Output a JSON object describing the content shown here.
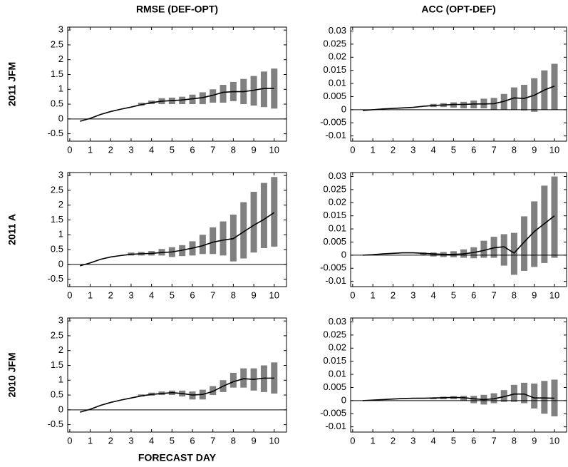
{
  "chart_data": [
    {
      "type": "line",
      "title": "RMSE (DEF-OPT)",
      "ylabel": "2011 JFM",
      "x": [
        0.5,
        1,
        1.5,
        2,
        2.5,
        3,
        3.5,
        4,
        4.5,
        5,
        5.5,
        6,
        6.5,
        7,
        7.5,
        8,
        8.5,
        9,
        9.5,
        10
      ],
      "values": [
        -0.08,
        0.02,
        0.15,
        0.25,
        0.33,
        0.4,
        0.48,
        0.55,
        0.6,
        0.62,
        0.64,
        0.68,
        0.72,
        0.8,
        0.9,
        0.92,
        0.92,
        0.97,
        1.03,
        1.03
      ],
      "bar_low": [
        null,
        null,
        null,
        null,
        null,
        null,
        0.45,
        0.5,
        0.5,
        0.5,
        0.5,
        0.5,
        0.5,
        0.55,
        0.55,
        0.6,
        0.5,
        0.45,
        0.4,
        0.35
      ],
      "bar_high": [
        null,
        null,
        null,
        null,
        null,
        null,
        0.55,
        0.62,
        0.7,
        0.72,
        0.75,
        0.82,
        0.9,
        1.0,
        1.15,
        1.25,
        1.35,
        1.45,
        1.6,
        1.7
      ],
      "line_color": "#000000",
      "bar_color": "#808080",
      "hline": 0,
      "xlim": [
        -0.1,
        10.6
      ],
      "xticks": [
        0,
        1,
        2,
        3,
        4,
        5,
        6,
        7,
        8,
        9,
        10
      ],
      "ylim": [
        -0.75,
        3.1
      ],
      "yticks": [
        -0.5,
        0,
        0.5,
        1,
        1.5,
        2,
        2.5,
        3
      ]
    },
    {
      "type": "line",
      "title": "ACC (OPT-DEF)",
      "x": [
        0.5,
        1,
        1.5,
        2,
        2.5,
        3,
        3.5,
        4,
        4.5,
        5,
        5.5,
        6,
        6.5,
        7,
        7.5,
        8,
        8.5,
        9,
        9.5,
        10
      ],
      "values": [
        -0.0003,
        0,
        0.0003,
        0.0005,
        0.0007,
        0.0009,
        0.0013,
        0.0016,
        0.0018,
        0.002,
        0.002,
        0.0022,
        0.0022,
        0.0023,
        0.0032,
        0.0045,
        0.0043,
        0.0055,
        0.0075,
        0.009
      ],
      "bar_low": [
        null,
        null,
        null,
        null,
        null,
        null,
        null,
        0.001,
        0.001,
        0.0008,
        0.0005,
        0.0005,
        0.0005,
        0,
        0,
        0,
        -0.0003,
        -0.0008,
        0,
        0
      ],
      "bar_high": [
        null,
        null,
        null,
        null,
        null,
        null,
        null,
        0.0022,
        0.0025,
        0.0028,
        0.003,
        0.0035,
        0.0042,
        0.0045,
        0.006,
        0.0085,
        0.0095,
        0.012,
        0.015,
        0.0175
      ],
      "line_color": "#000000",
      "bar_color": "#808080",
      "hline": 0,
      "xlim": [
        -0.1,
        10.6
      ],
      "xticks": [
        0,
        1,
        2,
        3,
        4,
        5,
        6,
        7,
        8,
        9,
        10
      ],
      "ylim": [
        -0.012,
        0.0315
      ],
      "yticks": [
        -0.01,
        -0.005,
        0,
        0.005,
        0.01,
        0.015,
        0.02,
        0.025,
        0.03
      ]
    },
    {
      "type": "line",
      "ylabel": "2011 A",
      "x": [
        0.5,
        1,
        1.5,
        2,
        2.5,
        3,
        3.5,
        4,
        4.5,
        5,
        5.5,
        6,
        6.5,
        7,
        7.5,
        8,
        8.5,
        9,
        9.5,
        10
      ],
      "values": [
        -0.05,
        0.05,
        0.17,
        0.25,
        0.3,
        0.34,
        0.36,
        0.37,
        0.4,
        0.42,
        0.48,
        0.55,
        0.63,
        0.75,
        0.82,
        0.87,
        1.1,
        1.32,
        1.52,
        1.75
      ],
      "bar_low": [
        null,
        null,
        null,
        null,
        null,
        0.3,
        0.3,
        0.3,
        0.3,
        0.25,
        0.28,
        0.3,
        0.35,
        0.35,
        0.3,
        0.1,
        0.2,
        0.4,
        0.55,
        0.6
      ],
      "bar_high": [
        null,
        null,
        null,
        null,
        null,
        0.4,
        0.42,
        0.45,
        0.52,
        0.58,
        0.65,
        0.78,
        1.0,
        1.25,
        1.45,
        1.68,
        2.1,
        2.45,
        2.75,
        2.95
      ],
      "line_color": "#000000",
      "bar_color": "#808080",
      "hline": 0,
      "xlim": [
        -0.1,
        10.6
      ],
      "xticks": [
        0,
        1,
        2,
        3,
        4,
        5,
        6,
        7,
        8,
        9,
        10
      ],
      "ylim": [
        -0.75,
        3.1
      ],
      "yticks": [
        -0.5,
        0,
        0.5,
        1,
        1.5,
        2,
        2.5,
        3
      ]
    },
    {
      "type": "line",
      "x": [
        0.5,
        1,
        1.5,
        2,
        2.5,
        3,
        3.5,
        4,
        4.5,
        5,
        5.5,
        6,
        6.5,
        7,
        7.5,
        8,
        8.5,
        9,
        9.5,
        10
      ],
      "values": [
        0,
        0.0002,
        0.0005,
        0.0007,
        0.0009,
        0.0009,
        0.0007,
        0.0005,
        0.0003,
        0.0003,
        0.0005,
        0.001,
        0.0018,
        0.0028,
        0.0032,
        0.0008,
        0.005,
        0.009,
        0.012,
        0.015
      ],
      "bar_low": [
        null,
        null,
        null,
        null,
        null,
        null,
        0,
        -0.0005,
        -0.0007,
        -0.0008,
        -0.001,
        -0.0012,
        -0.001,
        -0.001,
        -0.004,
        -0.0075,
        -0.006,
        -0.0045,
        -0.003,
        -0.001
      ],
      "bar_high": [
        null,
        null,
        null,
        null,
        null,
        null,
        0.001,
        0.001,
        0.0012,
        0.0015,
        0.0022,
        0.003,
        0.0055,
        0.007,
        0.008,
        0.0085,
        0.0148,
        0.0205,
        0.0265,
        0.03
      ],
      "line_color": "#000000",
      "bar_color": "#808080",
      "hline": 0,
      "xlim": [
        -0.1,
        10.6
      ],
      "xticks": [
        0,
        1,
        2,
        3,
        4,
        5,
        6,
        7,
        8,
        9,
        10
      ],
      "ylim": [
        -0.012,
        0.0315
      ],
      "yticks": [
        -0.01,
        -0.005,
        0,
        0.005,
        0.01,
        0.015,
        0.02,
        0.025,
        0.03
      ]
    },
    {
      "type": "line",
      "ylabel": "2010 JFM",
      "xlabel": "FORECAST DAY",
      "x": [
        0.5,
        1,
        1.5,
        2,
        2.5,
        3,
        3.5,
        4,
        4.5,
        5,
        5.5,
        6,
        6.5,
        7,
        7.5,
        8,
        8.5,
        9,
        9.5,
        10
      ],
      "values": [
        -0.08,
        0.02,
        0.15,
        0.25,
        0.33,
        0.4,
        0.47,
        0.52,
        0.55,
        0.58,
        0.55,
        0.5,
        0.52,
        0.62,
        0.8,
        0.95,
        1.05,
        1.03,
        1.07,
        1.07
      ],
      "bar_low": [
        null,
        null,
        null,
        null,
        null,
        null,
        0.45,
        0.48,
        0.5,
        0.5,
        0.45,
        0.35,
        0.35,
        0.5,
        0.6,
        0.75,
        0.75,
        0.65,
        0.6,
        0.55
      ],
      "bar_high": [
        null,
        null,
        null,
        null,
        null,
        null,
        0.52,
        0.58,
        0.62,
        0.65,
        0.65,
        0.62,
        0.68,
        0.8,
        1.0,
        1.25,
        1.4,
        1.4,
        1.5,
        1.6
      ],
      "line_color": "#000000",
      "bar_color": "#808080",
      "hline": 0,
      "xlim": [
        -0.1,
        10.6
      ],
      "xticks": [
        0,
        1,
        2,
        3,
        4,
        5,
        6,
        7,
        8,
        9,
        10
      ],
      "ylim": [
        -0.75,
        3.1
      ],
      "yticks": [
        -0.5,
        0,
        0.5,
        1,
        1.5,
        2,
        2.5,
        3
      ]
    },
    {
      "type": "line",
      "x": [
        0.5,
        1,
        1.5,
        2,
        2.5,
        3,
        3.5,
        4,
        4.5,
        5,
        5.5,
        6,
        6.5,
        7,
        7.5,
        8,
        8.5,
        9,
        9.5,
        10
      ],
      "values": [
        0,
        0.0002,
        0.0004,
        0.0006,
        0.0008,
        0.0009,
        0.0009,
        0.001,
        0.0011,
        0.0012,
        0.0011,
        0.0007,
        0.0004,
        0.0007,
        0.0015,
        0.0025,
        0.0025,
        0.001,
        0.001,
        0.0009
      ],
      "bar_low": [
        null,
        null,
        null,
        null,
        null,
        null,
        null,
        0.0005,
        0.0005,
        0.0005,
        0,
        -0.001,
        -0.0015,
        -0.001,
        -0.0005,
        -0.0005,
        -0.001,
        -0.003,
        -0.005,
        -0.006
      ],
      "bar_high": [
        null,
        null,
        null,
        null,
        null,
        null,
        null,
        0.0012,
        0.0015,
        0.0017,
        0.0018,
        0.0018,
        0.0022,
        0.0028,
        0.004,
        0.006,
        0.0068,
        0.0065,
        0.0075,
        0.008
      ],
      "line_color": "#000000",
      "bar_color": "#808080",
      "hline": 0,
      "xlim": [
        -0.1,
        10.6
      ],
      "xticks": [
        0,
        1,
        2,
        3,
        4,
        5,
        6,
        7,
        8,
        9,
        10
      ],
      "ylim": [
        -0.012,
        0.0315
      ],
      "yticks": [
        -0.01,
        -0.005,
        0,
        0.005,
        0.01,
        0.015,
        0.02,
        0.025,
        0.03
      ]
    }
  ]
}
